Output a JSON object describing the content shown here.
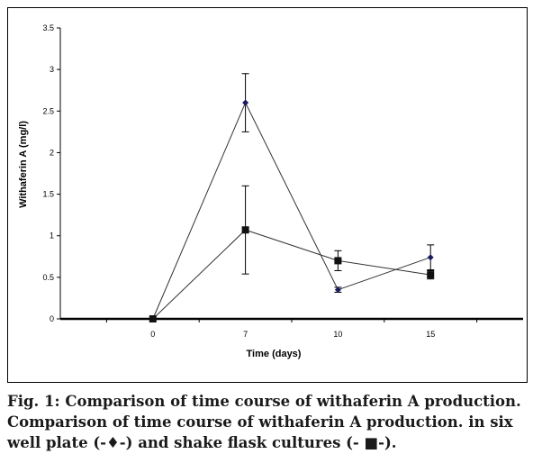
{
  "chart_data": {
    "type": "line",
    "categories": [
      "0",
      "7",
      "10",
      "15"
    ],
    "xlabel": "Time (days)",
    "ylabel": "Withaferin A (mg/l)",
    "ylim": [
      0,
      3.5
    ],
    "y_ticks": [
      "0",
      "0.5",
      "1",
      "1.5",
      "2",
      "2.5",
      "3",
      "3.5"
    ],
    "grid": false,
    "series": [
      {
        "name": "six well plate",
        "marker": "diamond",
        "color": "#1b1b5e",
        "values": [
          0,
          2.6,
          0.35,
          0.74
        ],
        "error": [
          0,
          0.35,
          0.03,
          0.15
        ]
      },
      {
        "name": "shake flask cultures",
        "marker": "square",
        "color": "#111111",
        "values": [
          0,
          1.07,
          0.7,
          0.53
        ],
        "error": [
          0,
          0.53,
          0.12,
          0.05
        ]
      }
    ]
  },
  "caption": {
    "line1": "Fig. 1: Comparison of time course of withaferin A production.",
    "line2": "Comparison of time course of withaferin A production. in six",
    "line3": "well plate (-♦-) and shake flask cultures (- ■-)."
  }
}
